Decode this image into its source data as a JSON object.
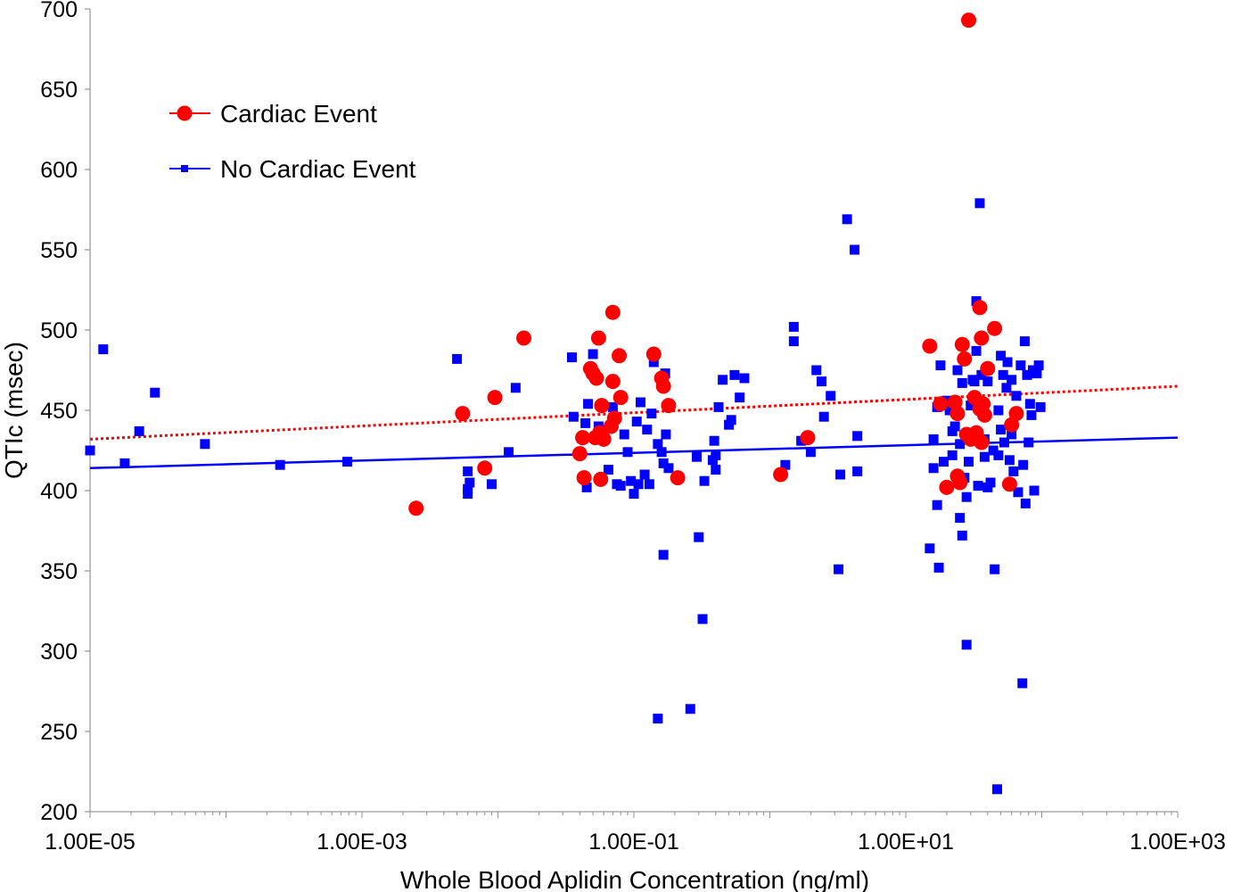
{
  "chart_data": {
    "type": "scatter",
    "title": "",
    "xlabel": "Whole Blood Aplidin Concentration (ng/ml)",
    "ylabel": "QTIc (msec)",
    "xscale": "log",
    "xlim": [
      1e-05,
      1000
    ],
    "ylim": [
      200,
      700
    ],
    "x_ticks": [
      1e-05,
      0.001,
      0.1,
      10,
      1000
    ],
    "x_tick_labels": [
      "1.00E-05",
      "1.00E-03",
      "1.00E-01",
      "1.00E+01",
      "1.00E+03"
    ],
    "y_ticks": [
      200,
      250,
      300,
      350,
      400,
      450,
      500,
      550,
      600,
      650,
      700
    ],
    "y_tick_labels": [
      "200",
      "250",
      "300",
      "350",
      "400",
      "450",
      "500",
      "550",
      "600",
      "650",
      "700"
    ],
    "legend_position": "top-left",
    "series": [
      {
        "name": "Cardiac Event",
        "color": "#ff0000",
        "marker": "circle",
        "trendline": {
          "style": "dotted",
          "x": [
            1e-05,
            1000
          ],
          "y": [
            432,
            465
          ]
        },
        "points": [
          [
            0.0025,
            389
          ],
          [
            0.0055,
            448
          ],
          [
            0.008,
            414
          ],
          [
            0.0095,
            458
          ],
          [
            0.0155,
            495
          ],
          [
            0.04,
            423
          ],
          [
            0.042,
            433
          ],
          [
            0.043,
            408
          ],
          [
            0.048,
            476
          ],
          [
            0.05,
            473
          ],
          [
            0.052,
            433
          ],
          [
            0.053,
            470
          ],
          [
            0.055,
            495
          ],
          [
            0.056,
            436
          ],
          [
            0.057,
            407
          ],
          [
            0.058,
            453
          ],
          [
            0.06,
            432
          ],
          [
            0.068,
            440
          ],
          [
            0.07,
            468
          ],
          [
            0.072,
            445
          ],
          [
            0.07,
            511
          ],
          [
            0.078,
            484
          ],
          [
            0.08,
            458
          ],
          [
            0.14,
            485
          ],
          [
            0.16,
            470
          ],
          [
            0.165,
            465
          ],
          [
            0.18,
            453
          ],
          [
            0.21,
            408
          ],
          [
            1.2,
            410
          ],
          [
            1.9,
            433
          ],
          [
            15,
            490
          ],
          [
            18,
            454
          ],
          [
            20,
            402
          ],
          [
            23,
            455
          ],
          [
            24,
            448
          ],
          [
            24,
            409
          ],
          [
            25,
            405
          ],
          [
            26,
            491
          ],
          [
            27,
            482
          ],
          [
            28,
            435
          ],
          [
            29,
            693
          ],
          [
            30,
            432
          ],
          [
            32,
            458
          ],
          [
            33,
            436
          ],
          [
            35,
            451
          ],
          [
            35,
            514
          ],
          [
            36,
            430
          ],
          [
            37,
            454
          ],
          [
            36,
            495
          ],
          [
            38,
            447
          ],
          [
            40,
            476
          ],
          [
            45,
            501
          ],
          [
            58,
            404
          ],
          [
            60,
            441
          ],
          [
            65,
            448
          ]
        ]
      },
      {
        "name": "No Cardiac Event",
        "color": "#0000ff",
        "marker": "square",
        "trendline": {
          "style": "solid",
          "x": [
            1e-05,
            1000
          ],
          "y": [
            414,
            433
          ]
        },
        "points": [
          [
            1e-05,
            425
          ],
          [
            1.25e-05,
            488
          ],
          [
            1.8e-05,
            417
          ],
          [
            2.3e-05,
            437
          ],
          [
            3e-05,
            461
          ],
          [
            7e-05,
            429
          ],
          [
            0.00025,
            416
          ],
          [
            0.00078,
            418
          ],
          [
            0.005,
            482
          ],
          [
            0.006,
            412
          ],
          [
            0.006,
            398
          ],
          [
            0.0062,
            405
          ],
          [
            0.006,
            401
          ],
          [
            0.009,
            404
          ],
          [
            0.012,
            424
          ],
          [
            0.0135,
            464
          ],
          [
            0.035,
            483
          ],
          [
            0.036,
            446
          ],
          [
            0.044,
            442
          ],
          [
            0.045,
            402
          ],
          [
            0.046,
            454
          ],
          [
            0.05,
            485
          ],
          [
            0.055,
            440
          ],
          [
            0.06,
            432
          ],
          [
            0.065,
            413
          ],
          [
            0.07,
            452
          ],
          [
            0.075,
            404
          ],
          [
            0.08,
            403
          ],
          [
            0.085,
            435
          ],
          [
            0.09,
            424
          ],
          [
            0.095,
            406
          ],
          [
            0.1,
            398
          ],
          [
            0.105,
            443
          ],
          [
            0.108,
            404
          ],
          [
            0.112,
            455
          ],
          [
            0.12,
            410
          ],
          [
            0.13,
            404
          ],
          [
            0.125,
            438
          ],
          [
            0.135,
            448
          ],
          [
            0.14,
            480
          ],
          [
            0.15,
            429
          ],
          [
            0.15,
            258
          ],
          [
            0.16,
            424
          ],
          [
            0.165,
            417
          ],
          [
            0.165,
            360
          ],
          [
            0.17,
            473
          ],
          [
            0.172,
            435
          ],
          [
            0.18,
            414
          ],
          [
            0.26,
            264
          ],
          [
            0.29,
            421
          ],
          [
            0.3,
            371
          ],
          [
            0.32,
            320
          ],
          [
            0.33,
            406
          ],
          [
            0.38,
            419
          ],
          [
            0.4,
            413
          ],
          [
            0.39,
            431
          ],
          [
            0.4,
            422
          ],
          [
            0.42,
            452
          ],
          [
            0.45,
            469
          ],
          [
            0.5,
            441
          ],
          [
            0.52,
            444
          ],
          [
            0.55,
            472
          ],
          [
            0.6,
            458
          ],
          [
            0.65,
            470
          ],
          [
            1.3,
            416
          ],
          [
            1.5,
            502
          ],
          [
            1.5,
            493
          ],
          [
            1.7,
            431
          ],
          [
            2.0,
            424
          ],
          [
            2.2,
            475
          ],
          [
            2.4,
            468
          ],
          [
            2.5,
            446
          ],
          [
            2.8,
            459
          ],
          [
            3.2,
            351
          ],
          [
            3.3,
            410
          ],
          [
            3.7,
            569
          ],
          [
            4.2,
            550
          ],
          [
            4.4,
            434
          ],
          [
            4.4,
            412
          ],
          [
            15,
            364
          ],
          [
            16,
            432
          ],
          [
            16,
            414
          ],
          [
            17,
            452
          ],
          [
            17,
            391
          ],
          [
            17.5,
            352
          ],
          [
            18,
            478
          ],
          [
            19,
            418
          ],
          [
            20,
            456
          ],
          [
            21,
            450
          ],
          [
            22,
            437
          ],
          [
            22,
            422
          ],
          [
            23,
            440
          ],
          [
            24,
            475
          ],
          [
            25,
            429
          ],
          [
            25,
            383
          ],
          [
            26,
            372
          ],
          [
            26,
            467
          ],
          [
            27,
            408
          ],
          [
            28,
            396
          ],
          [
            28,
            304
          ],
          [
            29,
            418
          ],
          [
            30,
            453
          ],
          [
            31,
            469
          ],
          [
            32,
            468
          ],
          [
            33,
            518
          ],
          [
            33,
            487
          ],
          [
            34,
            403
          ],
          [
            35,
            450
          ],
          [
            35,
            579
          ],
          [
            36,
            472
          ],
          [
            38,
            432
          ],
          [
            38,
            421
          ],
          [
            40,
            468
          ],
          [
            40,
            402
          ],
          [
            42,
            405
          ],
          [
            44,
            425
          ],
          [
            45,
            351
          ],
          [
            47,
            214
          ],
          [
            48,
            450
          ],
          [
            48,
            422
          ],
          [
            50,
            438
          ],
          [
            50,
            484
          ],
          [
            52,
            472
          ],
          [
            53,
            430
          ],
          [
            55,
            464
          ],
          [
            56,
            480
          ],
          [
            58,
            419
          ],
          [
            60,
            435
          ],
          [
            60,
            469
          ],
          [
            62,
            412
          ],
          [
            65,
            459
          ],
          [
            67,
            399
          ],
          [
            70,
            478
          ],
          [
            72,
            280
          ],
          [
            73,
            416
          ],
          [
            75,
            493
          ],
          [
            76,
            392
          ],
          [
            78,
            472
          ],
          [
            80,
            430
          ],
          [
            82,
            454
          ],
          [
            84,
            447
          ],
          [
            86,
            475
          ],
          [
            88,
            400
          ],
          [
            92,
            473
          ],
          [
            95,
            478
          ],
          [
            98,
            452
          ]
        ]
      }
    ]
  }
}
